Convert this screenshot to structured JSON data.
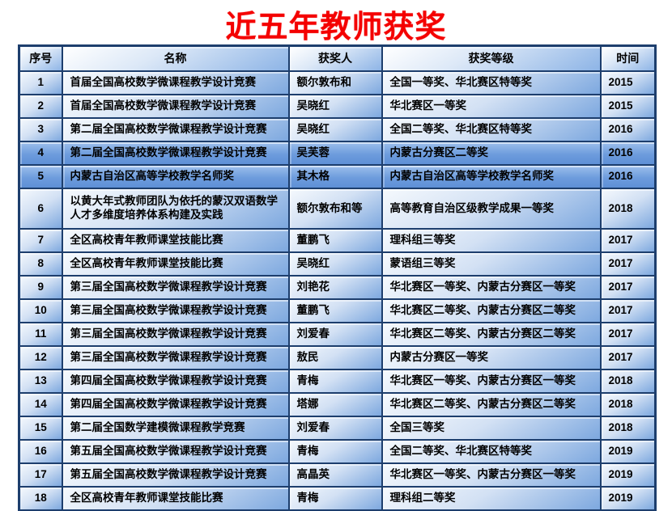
{
  "page": {
    "title": "近五年教师获奖"
  },
  "colors": {
    "title_red": "#f40000",
    "border_navy": "#1d3e6d",
    "row_blue_light": "#d3e1f4",
    "row_blue": "#7da8df",
    "highlight_blue": "#6d9cdd",
    "text": "#000000"
  },
  "table": {
    "headers": [
      "序号",
      "名称",
      "获奖人",
      "获奖等级",
      "时间"
    ],
    "rows": [
      {
        "no": "1",
        "name": "首届全国高校数学微课程教学设计竞赛",
        "winner": "额尔敦布和",
        "award": "全国一等奖、华北赛区特等奖",
        "year": "2015",
        "highlight": false,
        "tall": false
      },
      {
        "no": "2",
        "name": "首届全国高校数学微课程教学设计竞赛",
        "winner": "吴晓红",
        "award": "华北赛区一等奖",
        "year": "2015",
        "highlight": false,
        "tall": false
      },
      {
        "no": "3",
        "name": "第二届全国高校数学微课程教学设计竞赛",
        "winner": "吴晓红",
        "award": "全国二等奖、华北赛区特等奖",
        "year": "2016",
        "highlight": false,
        "tall": false
      },
      {
        "no": "4",
        "name": "第二届全国高校数学微课程教学设计竞赛",
        "winner": "吴芙蓉",
        "award": "内蒙古分赛区二等奖",
        "year": "2016",
        "highlight": true,
        "tall": false
      },
      {
        "no": "5",
        "name": "内蒙古自治区高等学校教学名师奖",
        "winner": "其木格",
        "award": "内蒙古自治区高等学校教学名师奖",
        "year": "2016",
        "highlight": true,
        "tall": false
      },
      {
        "no": "6",
        "name": "以黄大年式教师团队为依托的蒙汉双语数学人才多维度培养体系构建及实践",
        "winner": "额尔敦布和等",
        "award": "高等教育自治区级教学成果一等奖",
        "year": "2018",
        "highlight": false,
        "tall": true
      },
      {
        "no": "7",
        "name": "全区高校青年教师课堂技能比赛",
        "winner": "董鹏飞",
        "award": "理科组三等奖",
        "year": "2017",
        "highlight": false,
        "tall": false
      },
      {
        "no": "8",
        "name": "全区高校青年教师课堂技能比赛",
        "winner": "吴晓红",
        "award": "蒙语组三等奖",
        "year": "2017",
        "highlight": false,
        "tall": false
      },
      {
        "no": "9",
        "name": "第三届全国高校数学微课程教学设计竞赛",
        "winner": "刘艳花",
        "award": "华北赛区一等奖、内蒙古分赛区一等奖",
        "year": "2017",
        "highlight": false,
        "tall": false
      },
      {
        "no": "10",
        "name": "第三届全国高校数学微课程教学设计竞赛",
        "winner": "董鹏飞",
        "award": "华北赛区二等奖、内蒙古分赛区二等奖",
        "year": "2017",
        "highlight": false,
        "tall": false
      },
      {
        "no": "11",
        "name": "第三届全国高校数学微课程教学设计竞赛",
        "winner": "刘爱春",
        "award": "华北赛区二等奖、内蒙古分赛区二等奖",
        "year": "2017",
        "highlight": false,
        "tall": false
      },
      {
        "no": "12",
        "name": "第三届全国高校数学微课程教学设计竞赛",
        "winner": "敖民",
        "award": "内蒙古分赛区一等奖",
        "year": "2017",
        "highlight": false,
        "tall": false
      },
      {
        "no": "13",
        "name": "第四届全国高校数学微课程教学设计竞赛",
        "winner": "青梅",
        "award": "华北赛区一等奖、内蒙古分赛区一等奖",
        "year": "2018",
        "highlight": false,
        "tall": false
      },
      {
        "no": "14",
        "name": "第四届全国高校数学微课程教学设计竞赛",
        "winner": "塔娜",
        "award": "华北赛区二等奖、内蒙古分赛区二等奖",
        "year": "2018",
        "highlight": false,
        "tall": false
      },
      {
        "no": "15",
        "name": "第二届全国数学建模微课程教学竞赛",
        "winner": "刘爱春",
        "award": "全国三等奖",
        "year": "2018",
        "highlight": false,
        "tall": false
      },
      {
        "no": "16",
        "name": "第五届全国高校数学微课程教学设计竞赛",
        "winner": "青梅",
        "award": "全国二等奖、华北赛区特等奖",
        "year": "2019",
        "highlight": false,
        "tall": false
      },
      {
        "no": "17",
        "name": "第五届全国高校数学微课程教学设计竞赛",
        "winner": "高晶英",
        "award": "华北赛区一等奖、内蒙古分赛区一等奖",
        "year": "2019",
        "highlight": false,
        "tall": false
      },
      {
        "no": "18",
        "name": "全区高校青年教师课堂技能比赛",
        "winner": "青梅",
        "award": "理科组二等奖",
        "year": "2019",
        "highlight": false,
        "tall": false
      }
    ]
  }
}
